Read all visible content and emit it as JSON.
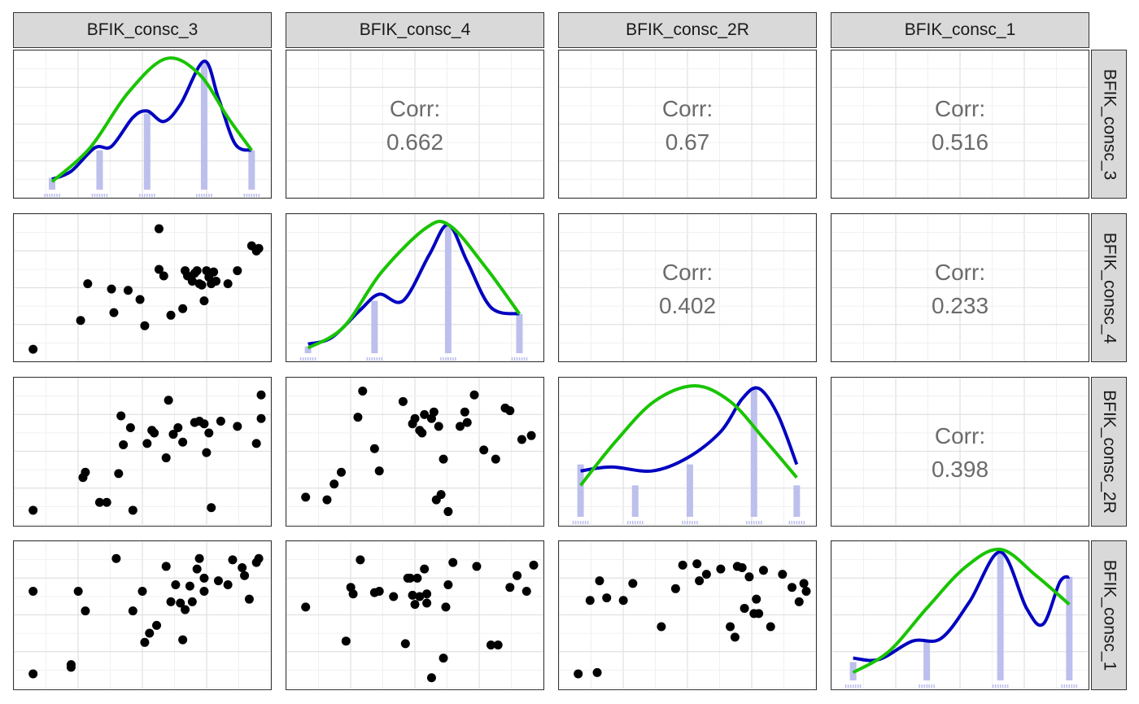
{
  "chart_data": {
    "type": "pairs",
    "variables": [
      "BFIK_consc_3",
      "BFIK_consc_4",
      "BFIK_consc_2R",
      "BFIK_consc_1"
    ],
    "corr_label": "Corr:",
    "correlations": [
      {
        "row": "BFIK_consc_3",
        "col": "BFIK_consc_4",
        "value": "0.662"
      },
      {
        "row": "BFIK_consc_3",
        "col": "BFIK_consc_2R",
        "value": "0.67"
      },
      {
        "row": "BFIK_consc_3",
        "col": "BFIK_consc_1",
        "value": "0.516"
      },
      {
        "row": "BFIK_consc_4",
        "col": "BFIK_consc_2R",
        "value": "0.402"
      },
      {
        "row": "BFIK_consc_4",
        "col": "BFIK_consc_1",
        "value": "0.233"
      },
      {
        "row": "BFIK_consc_2R",
        "col": "BFIK_consc_1",
        "value": "0.398"
      }
    ],
    "series_colors": {
      "kernel_density": "#0000c0",
      "normal_curve": "#19c400",
      "histogram": "#b9bcec",
      "points": "#000000"
    },
    "diagonals": [
      {
        "var": "BFIK_consc_3",
        "bars": [
          [
            0.12,
            0.09
          ],
          [
            0.32,
            0.3
          ],
          [
            0.52,
            0.58
          ],
          [
            0.76,
            0.98
          ],
          [
            0.96,
            0.3
          ]
        ],
        "density": [
          [
            0.12,
            0.08
          ],
          [
            0.2,
            0.14
          ],
          [
            0.3,
            0.32
          ],
          [
            0.37,
            0.33
          ],
          [
            0.46,
            0.55
          ],
          [
            0.52,
            0.6
          ],
          [
            0.59,
            0.52
          ],
          [
            0.66,
            0.65
          ],
          [
            0.76,
            0.98
          ],
          [
            0.82,
            0.7
          ],
          [
            0.89,
            0.35
          ],
          [
            0.96,
            0.3
          ]
        ],
        "normal": [
          [
            0.12,
            0.06
          ],
          [
            0.28,
            0.32
          ],
          [
            0.44,
            0.74
          ],
          [
            0.6,
            1.0
          ],
          [
            0.74,
            0.88
          ],
          [
            0.86,
            0.55
          ],
          [
            0.96,
            0.3
          ]
        ]
      },
      {
        "var": "BFIK_consc_4",
        "bars": [
          [
            0.05,
            0.05
          ],
          [
            0.33,
            0.4
          ],
          [
            0.64,
            0.98
          ],
          [
            0.94,
            0.3
          ]
        ],
        "density": [
          [
            0.05,
            0.07
          ],
          [
            0.15,
            0.12
          ],
          [
            0.27,
            0.33
          ],
          [
            0.35,
            0.45
          ],
          [
            0.45,
            0.4
          ],
          [
            0.56,
            0.75
          ],
          [
            0.64,
            0.98
          ],
          [
            0.72,
            0.7
          ],
          [
            0.82,
            0.35
          ],
          [
            0.94,
            0.3
          ]
        ],
        "normal": [
          [
            0.05,
            0.04
          ],
          [
            0.2,
            0.2
          ],
          [
            0.36,
            0.62
          ],
          [
            0.55,
            0.96
          ],
          [
            0.65,
            0.97
          ],
          [
            0.8,
            0.65
          ],
          [
            0.94,
            0.3
          ]
        ]
      },
      {
        "var": "BFIK_consc_2R",
        "bars": [
          [
            0.05,
            0.4
          ],
          [
            0.28,
            0.24
          ],
          [
            0.51,
            0.4
          ],
          [
            0.78,
            0.98
          ],
          [
            0.96,
            0.24
          ]
        ],
        "density": [
          [
            0.05,
            0.35
          ],
          [
            0.18,
            0.38
          ],
          [
            0.35,
            0.35
          ],
          [
            0.5,
            0.45
          ],
          [
            0.64,
            0.65
          ],
          [
            0.73,
            0.9
          ],
          [
            0.8,
            0.98
          ],
          [
            0.88,
            0.78
          ],
          [
            0.96,
            0.4
          ]
        ],
        "normal": [
          [
            0.05,
            0.24
          ],
          [
            0.2,
            0.58
          ],
          [
            0.36,
            0.88
          ],
          [
            0.53,
            1.0
          ],
          [
            0.68,
            0.88
          ],
          [
            0.82,
            0.6
          ],
          [
            0.96,
            0.3
          ]
        ]
      },
      {
        "var": "BFIK_consc_1",
        "bars": [
          [
            0.05,
            0.14
          ],
          [
            0.36,
            0.3
          ],
          [
            0.67,
            0.98
          ],
          [
            0.96,
            0.79
          ]
        ],
        "density": [
          [
            0.05,
            0.17
          ],
          [
            0.16,
            0.16
          ],
          [
            0.3,
            0.3
          ],
          [
            0.42,
            0.32
          ],
          [
            0.54,
            0.6
          ],
          [
            0.67,
            0.98
          ],
          [
            0.78,
            0.55
          ],
          [
            0.85,
            0.43
          ],
          [
            0.92,
            0.75
          ],
          [
            0.96,
            0.79
          ]
        ],
        "normal": [
          [
            0.05,
            0.06
          ],
          [
            0.2,
            0.22
          ],
          [
            0.36,
            0.55
          ],
          [
            0.52,
            0.86
          ],
          [
            0.67,
            1.0
          ],
          [
            0.82,
            0.8
          ],
          [
            0.96,
            0.58
          ]
        ]
      }
    ],
    "scatters": [
      {
        "row": "BFIK_consc_4",
        "col": "BFIK_consc_3",
        "points": [
          [
            0.04,
            0.03
          ],
          [
            0.24,
            0.25
          ],
          [
            0.27,
            0.53
          ],
          [
            0.37,
            0.49
          ],
          [
            0.38,
            0.31
          ],
          [
            0.44,
            0.48
          ],
          [
            0.49,
            0.41
          ],
          [
            0.51,
            0.21
          ],
          [
            0.57,
            0.95
          ],
          [
            0.57,
            0.64
          ],
          [
            0.59,
            0.59
          ],
          [
            0.62,
            0.29
          ],
          [
            0.67,
            0.34
          ],
          [
            0.68,
            0.63
          ],
          [
            0.69,
            0.59
          ],
          [
            0.71,
            0.55
          ],
          [
            0.72,
            0.61
          ],
          [
            0.73,
            0.63
          ],
          [
            0.74,
            0.53
          ],
          [
            0.75,
            0.52
          ],
          [
            0.76,
            0.4
          ],
          [
            0.77,
            0.63
          ],
          [
            0.78,
            0.58
          ],
          [
            0.79,
            0.53
          ],
          [
            0.8,
            0.62
          ],
          [
            0.81,
            0.55
          ],
          [
            0.86,
            0.53
          ],
          [
            0.9,
            0.63
          ],
          [
            0.96,
            0.82
          ],
          [
            0.98,
            0.78
          ],
          [
            0.99,
            0.8
          ]
        ]
      },
      {
        "row": "BFIK_consc_2R",
        "col": "BFIK_consc_3",
        "points": [
          [
            0.04,
            0.05
          ],
          [
            0.25,
            0.3
          ],
          [
            0.26,
            0.34
          ],
          [
            0.32,
            0.11
          ],
          [
            0.35,
            0.11
          ],
          [
            0.4,
            0.33
          ],
          [
            0.41,
            0.77
          ],
          [
            0.42,
            0.55
          ],
          [
            0.45,
            0.68
          ],
          [
            0.46,
            0.05
          ],
          [
            0.52,
            0.56
          ],
          [
            0.54,
            0.66
          ],
          [
            0.55,
            0.64
          ],
          [
            0.6,
            0.45
          ],
          [
            0.61,
            0.89
          ],
          [
            0.63,
            0.63
          ],
          [
            0.65,
            0.68
          ],
          [
            0.67,
            0.57
          ],
          [
            0.72,
            0.72
          ],
          [
            0.74,
            0.73
          ],
          [
            0.76,
            0.71
          ],
          [
            0.77,
            0.49
          ],
          [
            0.78,
            0.64
          ],
          [
            0.79,
            0.07
          ],
          [
            0.83,
            0.73
          ],
          [
            0.9,
            0.69
          ],
          [
            0.98,
            0.56
          ],
          [
            1.0,
            0.93
          ],
          [
            1.0,
            0.75
          ]
        ]
      },
      {
        "row": "BFIK_consc_2R",
        "col": "BFIK_consc_4",
        "points": [
          [
            0.04,
            0.15
          ],
          [
            0.13,
            0.13
          ],
          [
            0.16,
            0.25
          ],
          [
            0.19,
            0.34
          ],
          [
            0.26,
            0.76
          ],
          [
            0.28,
            0.96
          ],
          [
            0.33,
            0.52
          ],
          [
            0.35,
            0.35
          ],
          [
            0.45,
            0.88
          ],
          [
            0.49,
            0.71
          ],
          [
            0.5,
            0.75
          ],
          [
            0.52,
            0.66
          ],
          [
            0.53,
            0.64
          ],
          [
            0.54,
            0.78
          ],
          [
            0.57,
            0.75
          ],
          [
            0.58,
            0.8
          ],
          [
            0.59,
            0.13
          ],
          [
            0.6,
            0.69
          ],
          [
            0.61,
            0.17
          ],
          [
            0.62,
            0.44
          ],
          [
            0.64,
            0.04
          ],
          [
            0.69,
            0.69
          ],
          [
            0.71,
            0.8
          ],
          [
            0.72,
            0.72
          ],
          [
            0.75,
            0.93
          ],
          [
            0.79,
            0.51
          ],
          [
            0.84,
            0.44
          ],
          [
            0.88,
            0.83
          ],
          [
            0.9,
            0.81
          ],
          [
            0.95,
            0.59
          ],
          [
            0.99,
            0.62
          ]
        ]
      },
      {
        "row": "BFIK_consc_1",
        "col": "BFIK_consc_3",
        "points": [
          [
            0.04,
            0.68
          ],
          [
            0.04,
            0.05
          ],
          [
            0.2,
            0.12
          ],
          [
            0.2,
            0.1
          ],
          [
            0.23,
            0.68
          ],
          [
            0.26,
            0.53
          ],
          [
            0.39,
            0.93
          ],
          [
            0.46,
            0.53
          ],
          [
            0.5,
            0.68
          ],
          [
            0.51,
            0.29
          ],
          [
            0.53,
            0.36
          ],
          [
            0.56,
            0.42
          ],
          [
            0.6,
            0.87
          ],
          [
            0.62,
            0.6
          ],
          [
            0.64,
            0.73
          ],
          [
            0.66,
            0.59
          ],
          [
            0.67,
            0.31
          ],
          [
            0.68,
            0.54
          ],
          [
            0.7,
            0.72
          ],
          [
            0.71,
            0.6
          ],
          [
            0.73,
            0.85
          ],
          [
            0.74,
            0.93
          ],
          [
            0.76,
            0.78
          ],
          [
            0.76,
            0.68
          ],
          [
            0.82,
            0.76
          ],
          [
            0.86,
            0.73
          ],
          [
            0.88,
            0.92
          ],
          [
            0.92,
            0.86
          ],
          [
            0.93,
            0.8
          ],
          [
            0.95,
            0.62
          ],
          [
            0.98,
            0.9
          ],
          [
            0.99,
            0.93
          ]
        ]
      },
      {
        "row": "BFIK_consc_1",
        "col": "BFIK_consc_4",
        "points": [
          [
            0.04,
            0.56
          ],
          [
            0.21,
            0.3
          ],
          [
            0.23,
            0.71
          ],
          [
            0.24,
            0.66
          ],
          [
            0.27,
            0.92
          ],
          [
            0.33,
            0.67
          ],
          [
            0.35,
            0.68
          ],
          [
            0.41,
            0.64
          ],
          [
            0.46,
            0.28
          ],
          [
            0.47,
            0.78
          ],
          [
            0.48,
            0.78
          ],
          [
            0.49,
            0.65
          ],
          [
            0.5,
            0.58
          ],
          [
            0.51,
            0.78
          ],
          [
            0.52,
            0.64
          ],
          [
            0.54,
            0.85
          ],
          [
            0.55,
            0.66
          ],
          [
            0.55,
            0.59
          ],
          [
            0.57,
            0.02
          ],
          [
            0.62,
            0.17
          ],
          [
            0.63,
            0.56
          ],
          [
            0.64,
            0.73
          ],
          [
            0.66,
            0.9
          ],
          [
            0.76,
            0.87
          ],
          [
            0.82,
            0.27
          ],
          [
            0.85,
            0.27
          ],
          [
            0.9,
            0.71
          ],
          [
            0.93,
            0.8
          ],
          [
            0.97,
            0.68
          ],
          [
            1.0,
            0.88
          ]
        ]
      },
      {
        "row": "BFIK_consc_1",
        "col": "BFIK_consc_2R",
        "points": [
          [
            0.04,
            0.05
          ],
          [
            0.09,
            0.61
          ],
          [
            0.12,
            0.06
          ],
          [
            0.13,
            0.76
          ],
          [
            0.16,
            0.63
          ],
          [
            0.23,
            0.61
          ],
          [
            0.27,
            0.74
          ],
          [
            0.39,
            0.41
          ],
          [
            0.45,
            0.7
          ],
          [
            0.48,
            0.88
          ],
          [
            0.54,
            0.89
          ],
          [
            0.55,
            0.76
          ],
          [
            0.58,
            0.81
          ],
          [
            0.64,
            0.85
          ],
          [
            0.68,
            0.41
          ],
          [
            0.7,
            0.33
          ],
          [
            0.71,
            0.87
          ],
          [
            0.73,
            0.86
          ],
          [
            0.74,
            0.55
          ],
          [
            0.76,
            0.79
          ],
          [
            0.78,
            0.51
          ],
          [
            0.79,
            0.62
          ],
          [
            0.8,
            0.51
          ],
          [
            0.82,
            0.84
          ],
          [
            0.85,
            0.41
          ],
          [
            0.9,
            0.81
          ],
          [
            0.94,
            0.71
          ],
          [
            0.99,
            0.74
          ],
          [
            1.0,
            0.68
          ],
          [
            0.97,
            0.6
          ]
        ]
      }
    ]
  }
}
